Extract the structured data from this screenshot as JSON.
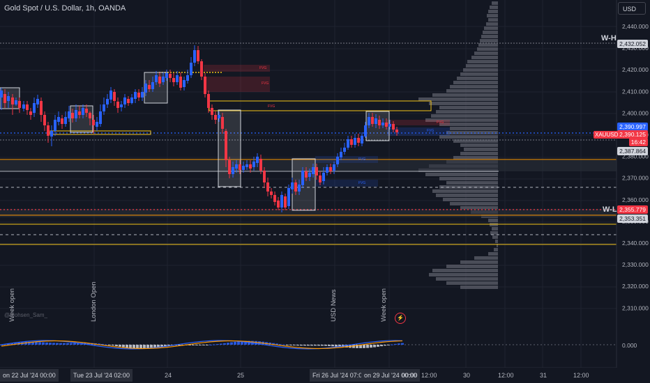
{
  "header": {
    "symbol_title": "Gold Spot / U.S. Dollar, 1h, OANDA",
    "currency_button": "USD"
  },
  "price_axis": {
    "ticks": [
      "2,440.000",
      "2,430.000",
      "2,420.000",
      "2,410.000",
      "2,400.000",
      "2,390.000",
      "2,380.000",
      "2,370.000",
      "2,360.000",
      "2,350.000",
      "2,340.000",
      "2,330.000",
      "2,320.000",
      "2,310.000"
    ],
    "macd_tick": "0.000"
  },
  "price_labels": {
    "level_high": "2,432.052",
    "level_a": "2,390.997",
    "current_price": "2,390.125",
    "countdown": "16:42",
    "level_b": "2,387.864",
    "level_low": "2,355.779",
    "level_c": "2,353.351",
    "ticker": "XAUUSD"
  },
  "level_tags": {
    "weekly_high": "W-H",
    "weekly_low": "W-L"
  },
  "fvg_tag": "FVG",
  "session_labels": {
    "week_open_1": "Week open",
    "london_open": "London Open",
    "usd_news": "USD News",
    "week_open_2": "Week open"
  },
  "watermark": "@Mohsen_Sam_",
  "time_axis": {
    "ticks": [
      "24",
      "25",
      "30",
      "12:00",
      "31",
      "12:00",
      "00:00",
      "12:00"
    ],
    "highlighted": [
      "on 22 Jul '24   00:00",
      "Tue 23 Jul '24   02:00",
      "Fri 26 Jul '24   07:00",
      "on 29 Jul '24   00:00"
    ]
  },
  "colors": {
    "background": "#131722",
    "bull": "#2962ff",
    "bear": "#f23645",
    "zone_outline": "#f5c518",
    "orange_line": "#ff9800",
    "volume_profile": "#787b86"
  },
  "icons": {
    "bolt": "lightning-icon"
  }
}
